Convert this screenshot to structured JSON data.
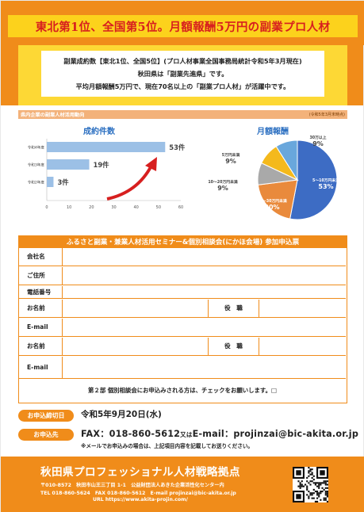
{
  "header": {
    "title": "東北第1位、全国第5位。月額報酬5万円の副業プロ人材"
  },
  "intro": {
    "line1": "副業成約数【東北1位、全国5位】(プロ人材事業全国事務局統計令和5年3月現在)",
    "line2": "秋田県は「副業先進県」です。",
    "line3": "平均月額報酬5万円で、現在70名以上の「副業プロ人材」が活躍中です。"
  },
  "stats": {
    "heading": "県内企業の副業人材活用動向",
    "note": "(令和5年3月末時点)",
    "bar_title": "成約件数",
    "pie_title": "月額報酬"
  },
  "chart_data": [
    {
      "type": "bar",
      "orientation": "horizontal",
      "title": "成約件数",
      "categories": [
        "令和4年度",
        "令和3年度",
        "令和2年度"
      ],
      "values": [
        53,
        19,
        3
      ],
      "value_labels": [
        "53件",
        "19件",
        "3件"
      ],
      "xlim": [
        0,
        60
      ],
      "xticks": [
        0,
        10,
        20,
        30,
        40,
        50,
        60
      ],
      "color": "#9cc0e6"
    },
    {
      "type": "pie",
      "title": "月額報酬",
      "slices": [
        {
          "label": "5〜10万円未満",
          "value": 53,
          "pct": "53%",
          "color": "#3d6cc4"
        },
        {
          "label": "20〜30万円未満",
          "value": 20,
          "pct": "20%",
          "color": "#e98a3c"
        },
        {
          "label": "10〜20万円未満",
          "value": 9,
          "pct": "9%",
          "color": "#a9a9a9"
        },
        {
          "label": "5万円未満",
          "value": 9,
          "pct": "9%",
          "color": "#f4b91c"
        },
        {
          "label": "30万以上",
          "value": 9,
          "pct": "9%",
          "color": "#69a7dc"
        }
      ]
    }
  ],
  "form": {
    "title": "ふるさと副業・兼業人材活用セミナー&個別相談会(にかほ会場) 参加申込票",
    "company_label": "会社名",
    "address_label": "ご住所",
    "phone_label": "電話番号",
    "name_label_1": "お名前",
    "position_label_1": "役　職",
    "email_label_1": "E-mail",
    "name_label_2": "お名前",
    "position_label_2": "役　職",
    "email_label_2": "E-mail",
    "note": "第２部 個別相談会にお申込みされる方は、チェックをお願いします。□"
  },
  "deadline": {
    "tag": "お申込締切日",
    "value": "令和5年9月20日(水)"
  },
  "apply": {
    "tag": "お申込先",
    "fax": "FAX：018-860-5612",
    "or": "又は",
    "email": "E-mail：projinzai@bic-akita.or.jp",
    "note": "※メールでお申込みの場合は、上記項目内容を記載してお送りください。"
  },
  "footer": {
    "org": "秋田県プロフェッショナル人材戦略拠点",
    "address": "〒010-8572　秋田市山王三丁目 1-1　公益財団法人あきた企業活性化センター内",
    "tel": "TEL 018-860-5624　FAX 018-860-5612　E-mail projinzai@bic-akita.or.jp",
    "url": "URL https://www.akita-projin.com/"
  },
  "colors": {
    "orange": "#f08c1a",
    "yellow": "#fdd835",
    "red": "#d71f1f",
    "blue": "#2b6fc1"
  }
}
